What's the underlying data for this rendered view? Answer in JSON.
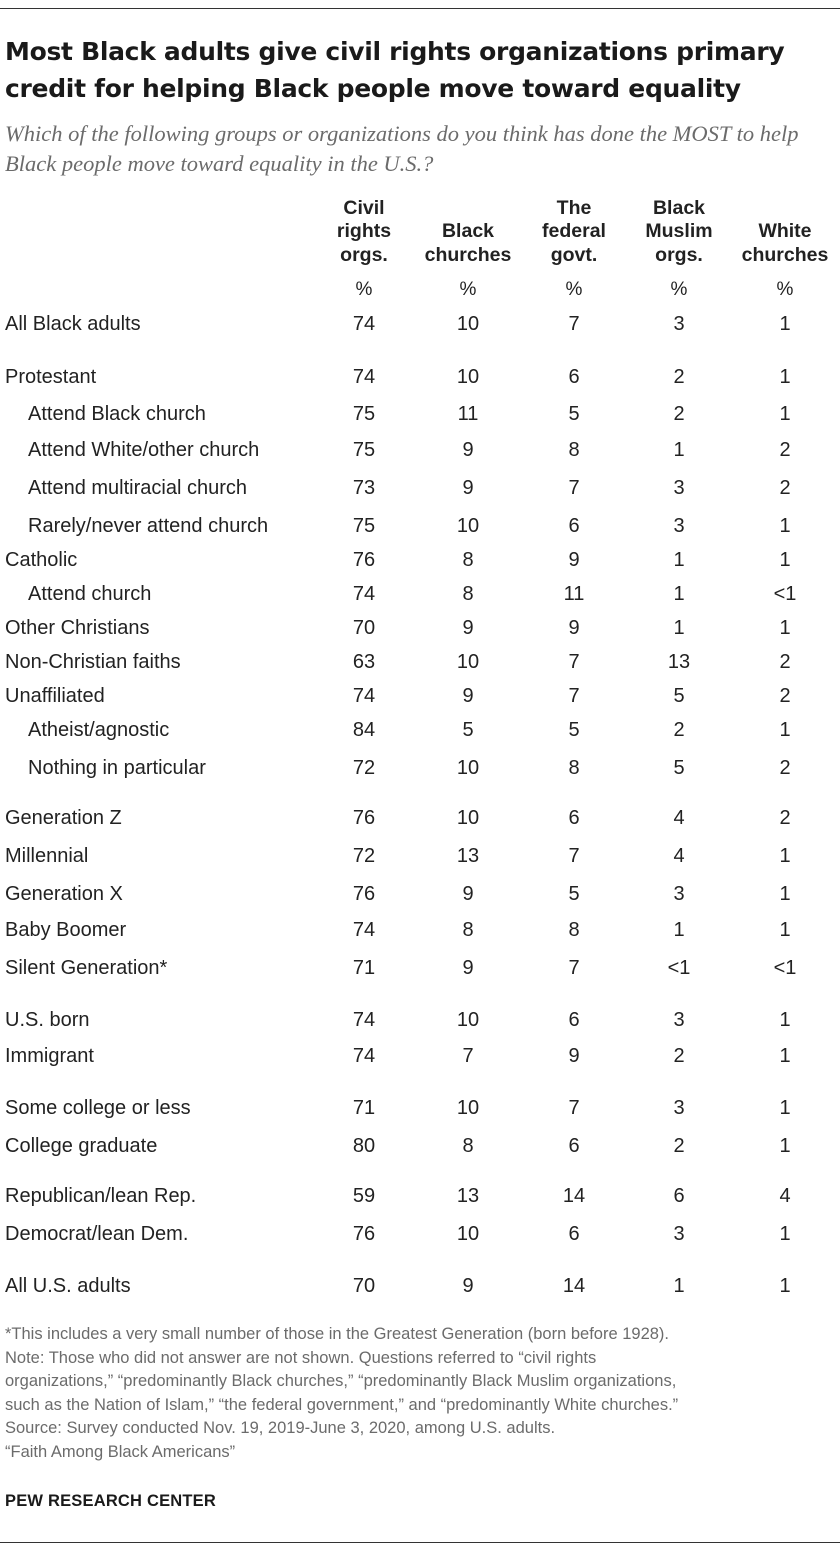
{
  "title": "Most Black adults give civil rights organizations primary credit for helping Black people move toward equality",
  "subtitle": "Which of the following groups or organizations do you think has done the MOST to help Black people move toward equality in the U.S.?",
  "columns": [
    {
      "label": "Civil rights orgs.",
      "unit": "%"
    },
    {
      "label": "Black churches",
      "unit": "%"
    },
    {
      "label": "The federal govt.",
      "unit": "%"
    },
    {
      "label": "Black Muslim orgs.",
      "unit": "%"
    },
    {
      "label": "White churches",
      "unit": "%"
    }
  ],
  "chart_data": {
    "type": "table",
    "title": "Most Black adults give civil rights organizations primary credit for helping Black people move toward equality",
    "columns": [
      "Civil rights orgs.",
      "Black churches",
      "The federal govt.",
      "Black Muslim orgs.",
      "White churches"
    ],
    "rows": [
      {
        "label": "All Black adults",
        "indent": false,
        "values": [
          "74",
          "10",
          "7",
          "3",
          "1"
        ]
      },
      {
        "label": "Protestant",
        "indent": false,
        "values": [
          "74",
          "10",
          "6",
          "2",
          "1"
        ]
      },
      {
        "label": "Attend Black church",
        "indent": true,
        "values": [
          "75",
          "11",
          "5",
          "2",
          "1"
        ]
      },
      {
        "label": "Attend White/other church",
        "indent": true,
        "values": [
          "75",
          "9",
          "8",
          "1",
          "2"
        ]
      },
      {
        "label": "Attend multiracial church",
        "indent": true,
        "values": [
          "73",
          "9",
          "7",
          "3",
          "2"
        ]
      },
      {
        "label": "Rarely/never attend church",
        "indent": true,
        "values": [
          "75",
          "10",
          "6",
          "3",
          "1"
        ]
      },
      {
        "label": "Catholic",
        "indent": false,
        "values": [
          "76",
          "8",
          "9",
          "1",
          "1"
        ]
      },
      {
        "label": "Attend church",
        "indent": true,
        "values": [
          "74",
          "8",
          "11",
          "1",
          "<1"
        ]
      },
      {
        "label": "Other Christians",
        "indent": false,
        "values": [
          "70",
          "9",
          "9",
          "1",
          "1"
        ]
      },
      {
        "label": "Non-Christian faiths",
        "indent": false,
        "values": [
          "63",
          "10",
          "7",
          "13",
          "2"
        ]
      },
      {
        "label": "Unaffiliated",
        "indent": false,
        "values": [
          "74",
          "9",
          "7",
          "5",
          "2"
        ]
      },
      {
        "label": "Atheist/agnostic",
        "indent": true,
        "values": [
          "84",
          "5",
          "5",
          "2",
          "1"
        ]
      },
      {
        "label": "Nothing in particular",
        "indent": true,
        "values": [
          "72",
          "10",
          "8",
          "5",
          "2"
        ]
      },
      {
        "label": "Generation Z",
        "indent": false,
        "values": [
          "76",
          "10",
          "6",
          "4",
          "2"
        ]
      },
      {
        "label": "Millennial",
        "indent": false,
        "values": [
          "72",
          "13",
          "7",
          "4",
          "1"
        ]
      },
      {
        "label": "Generation X",
        "indent": false,
        "values": [
          "76",
          "9",
          "5",
          "3",
          "1"
        ]
      },
      {
        "label": "Baby Boomer",
        "indent": false,
        "values": [
          "74",
          "8",
          "8",
          "1",
          "1"
        ]
      },
      {
        "label": "Silent Generation*",
        "indent": false,
        "values": [
          "71",
          "9",
          "7",
          "<1",
          "<1"
        ]
      },
      {
        "label": "U.S. born",
        "indent": false,
        "values": [
          "74",
          "10",
          "6",
          "3",
          "1"
        ]
      },
      {
        "label": "Immigrant",
        "indent": false,
        "values": [
          "74",
          "7",
          "9",
          "2",
          "1"
        ]
      },
      {
        "label": "Some college or less",
        "indent": false,
        "values": [
          "71",
          "10",
          "7",
          "3",
          "1"
        ]
      },
      {
        "label": "College graduate",
        "indent": false,
        "values": [
          "80",
          "8",
          "6",
          "2",
          "1"
        ]
      },
      {
        "label": "Republican/lean Rep.",
        "indent": false,
        "values": [
          "59",
          "13",
          "14",
          "6",
          "4"
        ]
      },
      {
        "label": "Democrat/lean Dem.",
        "indent": false,
        "values": [
          "76",
          "10",
          "6",
          "3",
          "1"
        ]
      },
      {
        "label": "All U.S. adults",
        "indent": false,
        "values": [
          "70",
          "9",
          "14",
          "1",
          "1"
        ]
      }
    ]
  },
  "notes": [
    "*This includes a very small number of those in the Greatest Generation (born before 1928).",
    "Note: Those who did not answer are not shown. Questions referred to “civil rights",
    "organizations,” “predominantly Black churches,” “predominantly Black Muslim organizations,",
    "such as the Nation of Islam,” “the federal government,” and “predominantly White churches.”",
    "Source: Survey conducted Nov. 19, 2019-June 3, 2020, among U.S. adults.",
    "“Faith Among Black Americans”"
  ],
  "source_brand": "PEW RESEARCH CENTER"
}
